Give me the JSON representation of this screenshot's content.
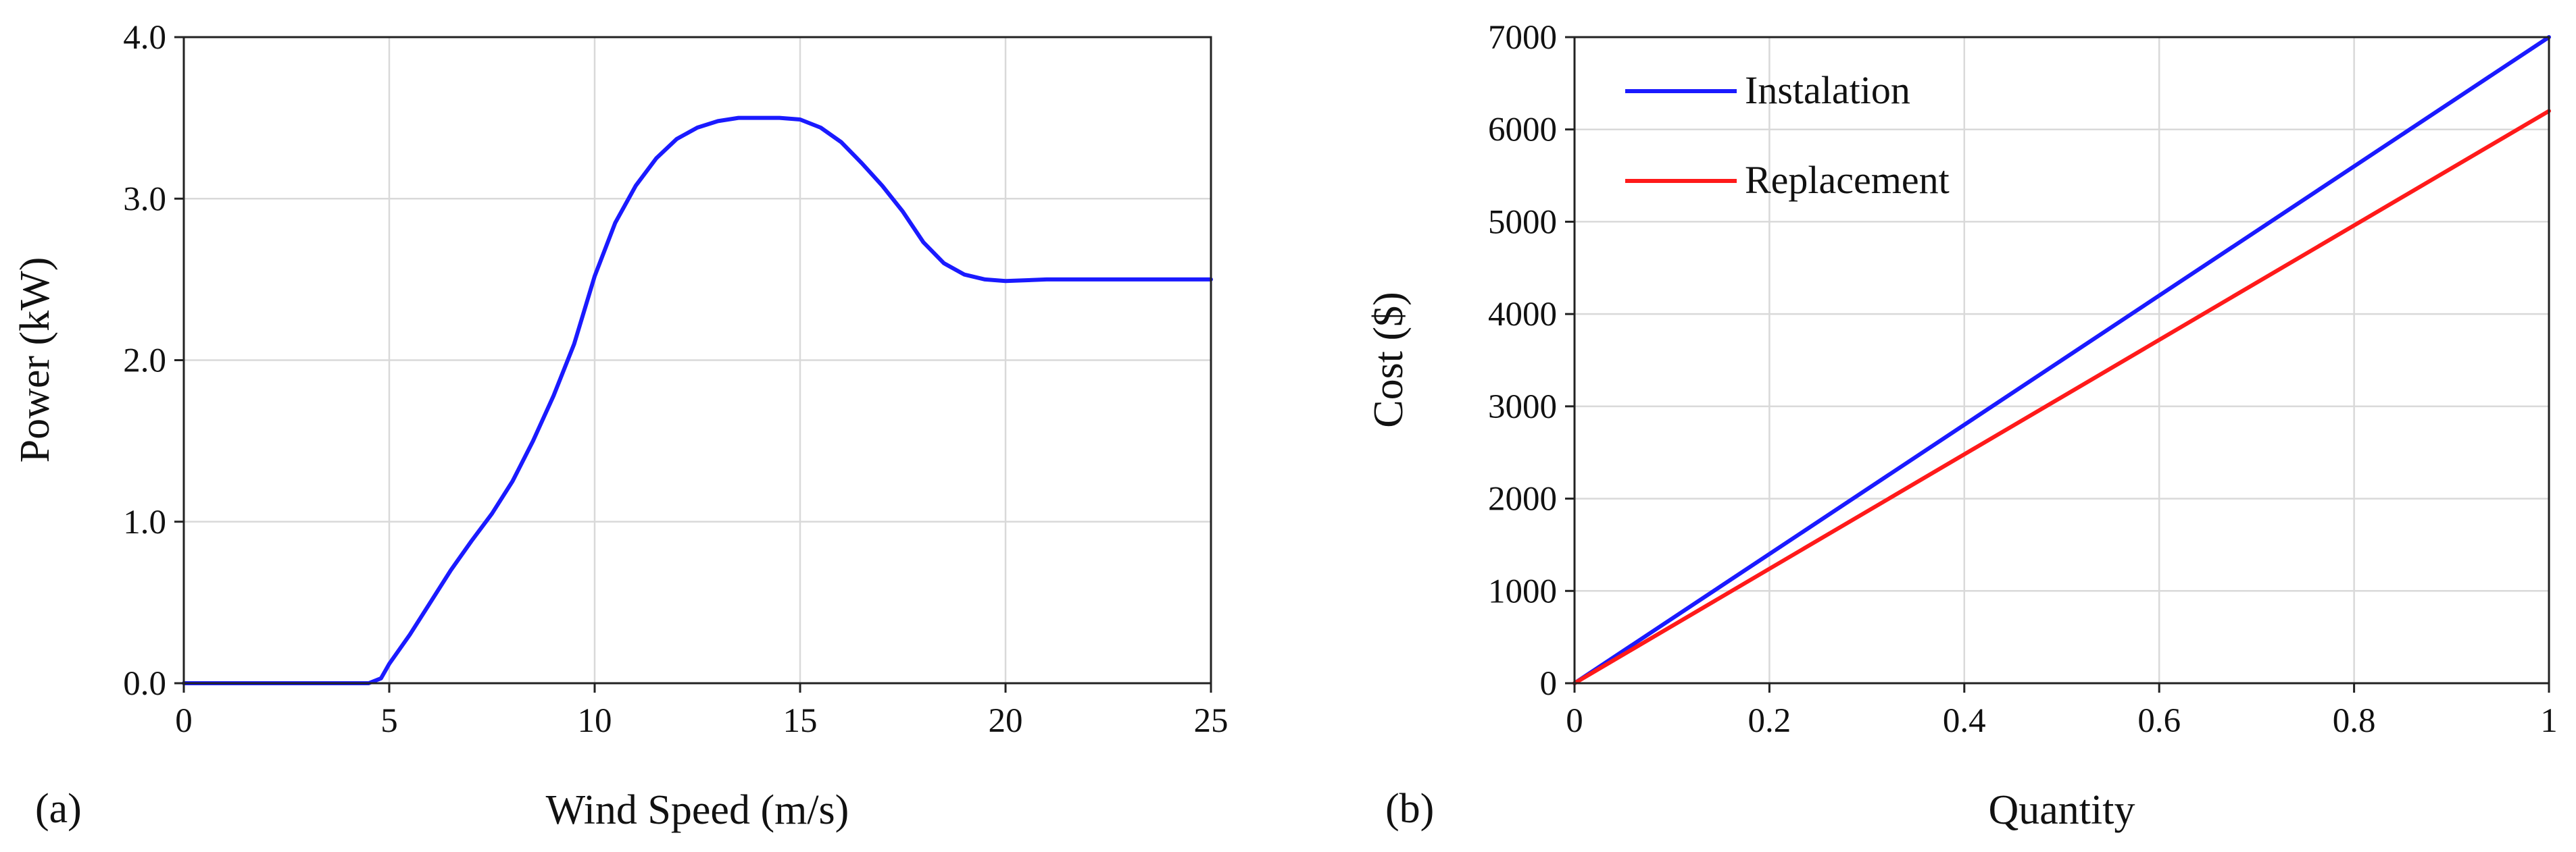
{
  "chart_data": [
    {
      "type": "line",
      "panel_label": "(a)",
      "title": "",
      "xlabel": "Wind Speed (m/s)",
      "ylabel": "Power (kW)",
      "xlim": [
        0,
        25
      ],
      "ylim": [
        0,
        4
      ],
      "x_ticks": [
        0,
        5,
        10,
        15,
        20,
        25
      ],
      "x_tick_labels": [
        "0",
        "5",
        "10",
        "15",
        "20",
        "25"
      ],
      "y_ticks": [
        0,
        1,
        2,
        3,
        4
      ],
      "y_tick_labels": [
        "0.0",
        "1.0",
        "2.0",
        "3.0",
        "4.0"
      ],
      "grid": true,
      "legend": "none",
      "series": [
        {
          "color": "#1a1aff",
          "x": [
            0,
            1,
            2,
            3,
            4,
            4.5,
            4.8,
            5,
            5.5,
            6,
            6.5,
            7,
            7.5,
            8,
            8.5,
            9,
            9.5,
            10,
            10.5,
            11,
            11.5,
            12,
            12.5,
            13,
            13.5,
            14,
            14.5,
            15,
            15.5,
            16,
            16.5,
            17,
            17.5,
            18,
            18.5,
            19,
            19.5,
            20,
            21,
            22,
            23,
            24,
            25
          ],
          "y": [
            0,
            0,
            0,
            0,
            0,
            0,
            0.03,
            0.12,
            0.3,
            0.5,
            0.7,
            0.88,
            1.05,
            1.25,
            1.5,
            1.78,
            2.1,
            2.52,
            2.85,
            3.08,
            3.25,
            3.37,
            3.44,
            3.48,
            3.5,
            3.5,
            3.5,
            3.49,
            3.44,
            3.35,
            3.22,
            3.08,
            2.92,
            2.73,
            2.6,
            2.53,
            2.5,
            2.49,
            2.5,
            2.5,
            2.5,
            2.5,
            2.5
          ]
        }
      ]
    },
    {
      "type": "line",
      "panel_label": "(b)",
      "title": "",
      "xlabel": "Quantity",
      "ylabel": "Cost ($)",
      "xlim": [
        0,
        1
      ],
      "ylim": [
        0,
        7000
      ],
      "x_ticks": [
        0,
        0.2,
        0.4,
        0.6,
        0.8,
        1
      ],
      "x_tick_labels": [
        "0",
        "0.2",
        "0.4",
        "0.6",
        "0.8",
        "1"
      ],
      "y_ticks": [
        0,
        1000,
        2000,
        3000,
        4000,
        5000,
        6000,
        7000
      ],
      "y_tick_labels": [
        "0",
        "1000",
        "2000",
        "3000",
        "4000",
        "5000",
        "6000",
        "7000"
      ],
      "grid": true,
      "legend": "top-left",
      "series": [
        {
          "name": "Instalation",
          "color": "#1a1aff",
          "x": [
            0,
            1
          ],
          "y": [
            0,
            7000
          ]
        },
        {
          "name": "Replacement",
          "color": "#ff1a1a",
          "x": [
            0,
            1
          ],
          "y": [
            0,
            6200
          ]
        }
      ]
    }
  ]
}
